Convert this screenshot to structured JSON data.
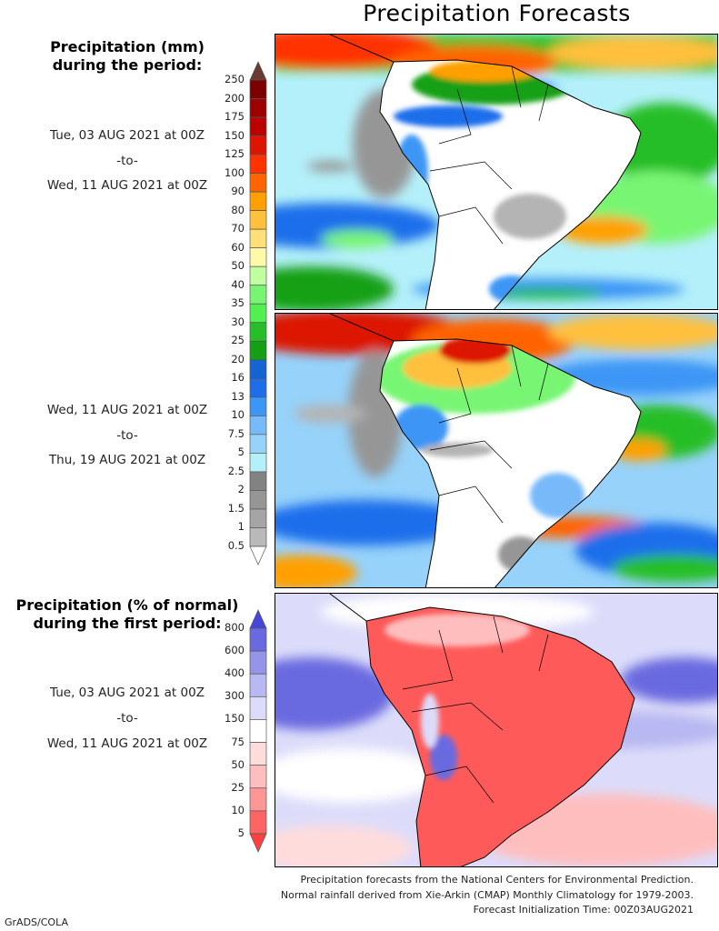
{
  "title": "Precipitation Forecasts",
  "panel1": {
    "heading_line1": "Precipitation (mm)",
    "heading_line2": "during the period:",
    "start": "Tue, 03 AUG 2021 at 00Z",
    "to": "-to-",
    "end": "Wed, 11 AUG 2021 at 00Z"
  },
  "panel2": {
    "start": "Wed, 11 AUG 2021 at 00Z",
    "to": "-to-",
    "end": "Thu, 19 AUG 2021 at 00Z"
  },
  "panel3": {
    "heading_line1": "Precipitation (% of normal)",
    "heading_line2": "during the first period:",
    "start": "Tue, 03 AUG 2021 at 00Z",
    "to": "-to-",
    "end": "Wed, 11 AUG 2021 at 00Z"
  },
  "colorbar_mm": {
    "labels": [
      "250",
      "200",
      "175",
      "150",
      "125",
      "100",
      "90",
      "80",
      "70",
      "60",
      "50",
      "40",
      "35",
      "30",
      "25",
      "20",
      "16",
      "13",
      "10",
      "7.5",
      "5",
      "2.5",
      "2",
      "1.5",
      "1",
      "0.5"
    ],
    "colors": [
      "#7d0000",
      "#9e0000",
      "#bc0000",
      "#dc1400",
      "#ff3200",
      "#ff6400",
      "#ffa000",
      "#ffc03c",
      "#ffe078",
      "#fffaaa",
      "#c0ffa0",
      "#78f573",
      "#50f050",
      "#28be28",
      "#14a014",
      "#1464d2",
      "#1e6eeb",
      "#3c96f5",
      "#78b9fa",
      "#96d2fa",
      "#b4f0fa",
      "#828282",
      "#969696",
      "#a5a5a5",
      "#b9b9b9"
    ],
    "over_color": "#6b3a33",
    "under_color": "#ffffff"
  },
  "colorbar_pct": {
    "labels": [
      "800",
      "600",
      "400",
      "300",
      "150",
      "75",
      "50",
      "25",
      "10",
      "5"
    ],
    "colors": [
      "#6a6ae0",
      "#9494e8",
      "#b8b8f2",
      "#dcdcfa",
      "#ffffff",
      "#ffdcdc",
      "#ffbebe",
      "#ff9696",
      "#ff6464"
    ],
    "over_color": "#4646dc",
    "under_color": "#ff4040"
  },
  "footer": {
    "line1": "Precipitation forecasts from the National Centers for Environmental Prediction.",
    "line2": "Normal rainfall derived from Xie-Arkin (CMAP) Monthly Climatology for 1979-2003.",
    "line3": "Forecast Initialization Time: 00Z03AUG2021"
  },
  "credit": "GrADS/COLA"
}
